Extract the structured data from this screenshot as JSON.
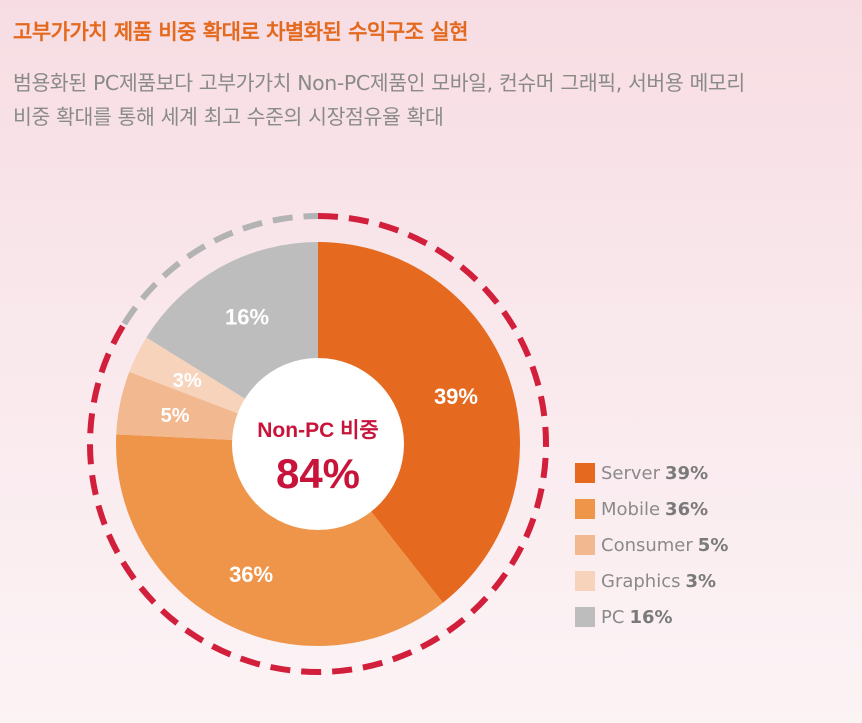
{
  "headline": "고부가가치 제품 비중 확대로 차별화된 수익구조 실현",
  "description_lines": [
    "범용화된 PC제품보다 고부가가치 Non-PC제품인 모바일, 컨슈머 그래픽, 서버용 메모리",
    "비중 확대를 통해 세계 최고 수준의 시장점유율 확대"
  ],
  "chart_data": {
    "type": "pie",
    "style": "donut",
    "center_label": "Non-PC 비중",
    "center_value": "84%",
    "slices": [
      {
        "name": "Server",
        "value": 39,
        "label": "39%",
        "color": "#e56a1f"
      },
      {
        "name": "Mobile",
        "value": 36,
        "label": "36%",
        "color": "#ee954a"
      },
      {
        "name": "Consumer",
        "value": 5,
        "label": "5%",
        "color": "#f2b88f"
      },
      {
        "name": "Graphics",
        "value": 3,
        "label": "3%",
        "color": "#f7d3bb"
      },
      {
        "name": "PC",
        "value": 16,
        "label": "16%",
        "color": "#bdbdbd"
      }
    ],
    "legend_position": "right",
    "outer_ring": {
      "non_pc_color": "#d21f3c",
      "pc_color": "#b3b3b3"
    }
  }
}
